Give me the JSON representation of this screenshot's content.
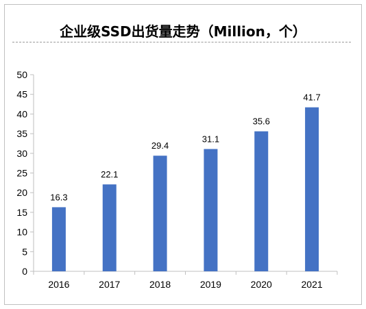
{
  "chart_data": {
    "type": "bar",
    "title": "企业级SSD出货量走势（Million，个）",
    "categories": [
      "2016",
      "2017",
      "2018",
      "2019",
      "2020",
      "2021"
    ],
    "values": [
      16.3,
      22.1,
      29.4,
      31.1,
      35.6,
      41.7
    ],
    "data_labels": [
      "16.3",
      "22.1",
      "29.4",
      "31.1",
      "35.6",
      "41.7"
    ],
    "ylim": [
      0,
      50
    ],
    "yticks": [
      "0",
      "5",
      "10",
      "15",
      "20",
      "25",
      "30",
      "35",
      "40",
      "45",
      "50"
    ],
    "xlabel": "",
    "ylabel": "",
    "grid": false,
    "legend": "none",
    "bar_color": "#4472C4"
  }
}
